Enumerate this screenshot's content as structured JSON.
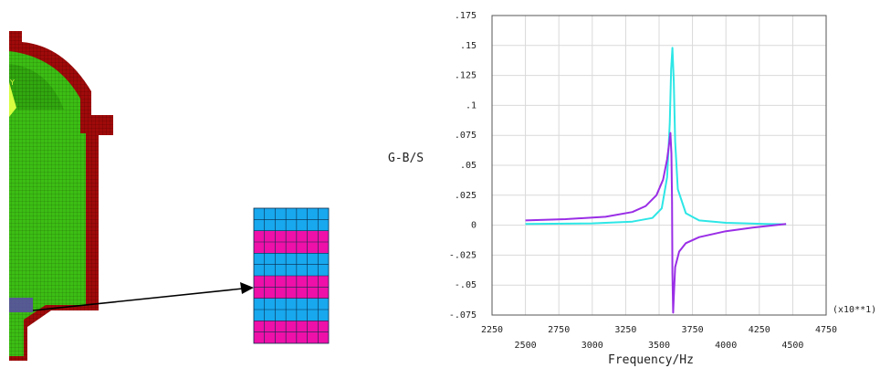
{
  "colors": {
    "shell_red": "#a00a0a",
    "mesh_green": "#3cbe14",
    "layer_cyan": "#18a8ee",
    "layer_magenta": "#ee10a8",
    "series_cyan": "#2ee6e6",
    "series_purple": "#9a2ee6",
    "grid": "#d9d9d9"
  },
  "model": {
    "axis_label": "Y",
    "layer_pattern": [
      "cyan",
      "magenta",
      "cyan",
      "magenta",
      "cyan",
      "magenta"
    ]
  },
  "chart_data": {
    "type": "line",
    "ylabel": "G-B/S",
    "xlabel": "Frequency/Hz",
    "x_multiplier": "(x10**1)",
    "xlim": [
      2250,
      4750
    ],
    "ylim": [
      -0.075,
      0.175
    ],
    "x_ticks_upper": [
      "2250",
      "2750",
      "3250",
      "3750",
      "4250",
      "4750"
    ],
    "x_ticks_lower": [
      "2500",
      "3000",
      "3500",
      "4000",
      "4500"
    ],
    "y_ticks": [
      ".175",
      ".15",
      ".125",
      ".1",
      ".075",
      ".05",
      ".025",
      "0",
      "-.025",
      "-.05",
      "-.075"
    ],
    "grid": true,
    "series": [
      {
        "color": "cyan",
        "x": [
          2500,
          3000,
          3300,
          3450,
          3520,
          3560,
          3580,
          3590,
          3600,
          3610,
          3620,
          3640,
          3700,
          3800,
          4000,
          4300,
          4450
        ],
        "y": [
          0.001,
          0.0015,
          0.003,
          0.006,
          0.014,
          0.04,
          0.085,
          0.13,
          0.148,
          0.12,
          0.07,
          0.03,
          0.01,
          0.004,
          0.002,
          0.001,
          0.0008
        ]
      },
      {
        "color": "purple",
        "x": [
          2500,
          2800,
          3100,
          3300,
          3400,
          3480,
          3530,
          3560,
          3575,
          3585,
          3592,
          3597,
          3600,
          3605,
          3610,
          3620,
          3650,
          3700,
          3800,
          4000,
          4200,
          4450
        ],
        "y": [
          0.004,
          0.005,
          0.007,
          0.011,
          0.016,
          0.025,
          0.038,
          0.055,
          0.068,
          0.077,
          0.06,
          0.02,
          -0.04,
          -0.073,
          -0.06,
          -0.035,
          -0.022,
          -0.015,
          -0.01,
          -0.005,
          -0.002,
          0.001
        ]
      }
    ]
  }
}
